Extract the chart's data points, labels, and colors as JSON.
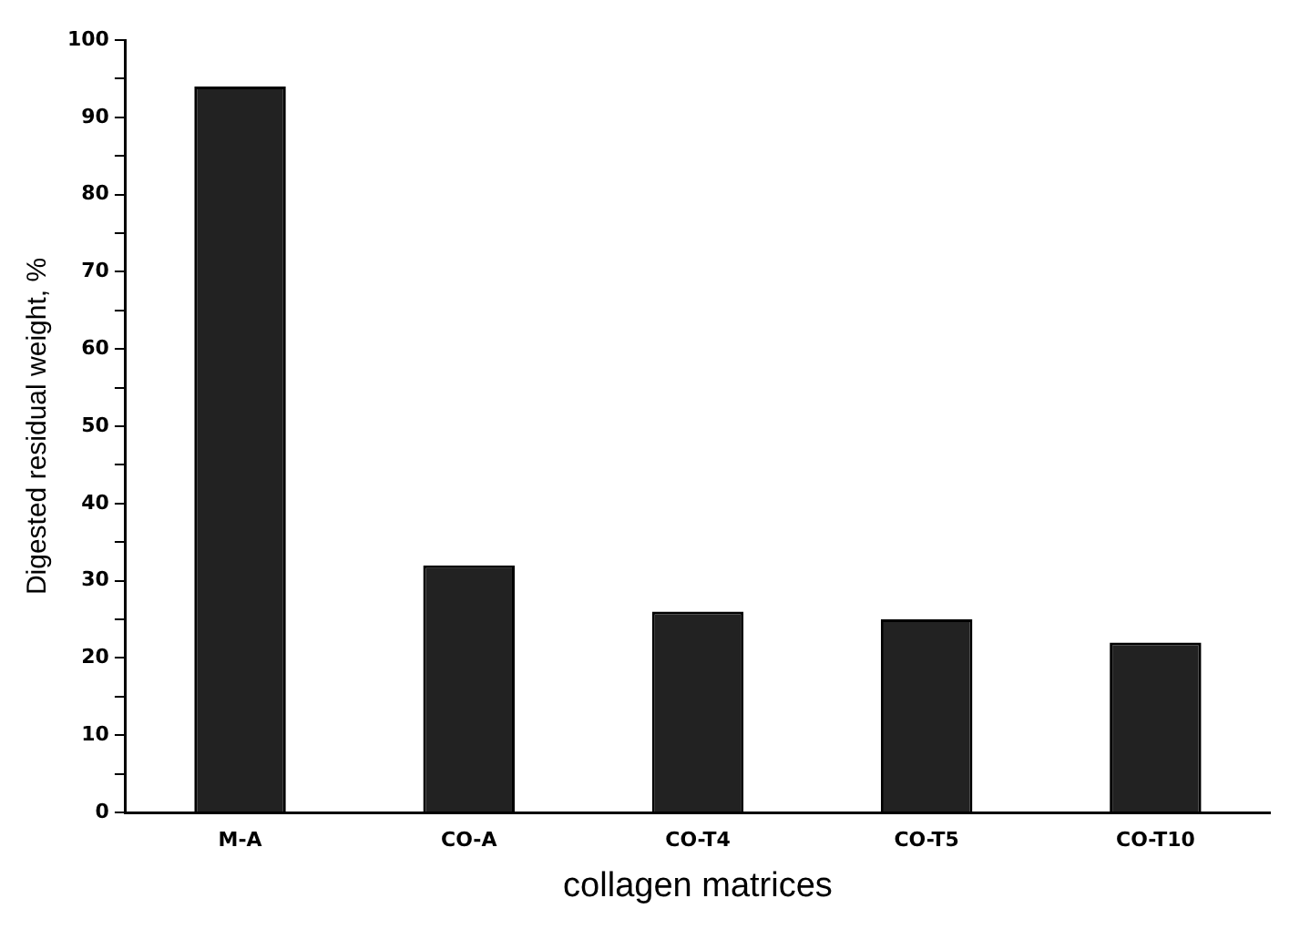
{
  "chart_data": {
    "type": "bar",
    "xlabel": "collagen matrices",
    "ylabel": "Digested residual weight, %",
    "categories": [
      "M-A",
      "CO-A",
      "CO-T4",
      "CO-T5",
      "CO-T10"
    ],
    "values": [
      94,
      32,
      26,
      25,
      22
    ],
    "color": "#222222",
    "ylim": [
      0,
      100
    ],
    "yticks": [
      0,
      {
        "value": 5,
        "label": null
      },
      10,
      {
        "value": 15,
        "label": null
      },
      20,
      {
        "value": 25,
        "label": null
      },
      30,
      {
        "value": 35,
        "label": null
      },
      40,
      {
        "value": 45,
        "label": null
      },
      50,
      {
        "value": 55,
        "label": null
      },
      60,
      {
        "value": 65,
        "label": null
      },
      70,
      {
        "value": 75,
        "label": null
      },
      80,
      {
        "value": 85,
        "label": null
      },
      90,
      {
        "value": 95,
        "label": null
      },
      100
    ],
    "grid": false,
    "legend": false
  }
}
